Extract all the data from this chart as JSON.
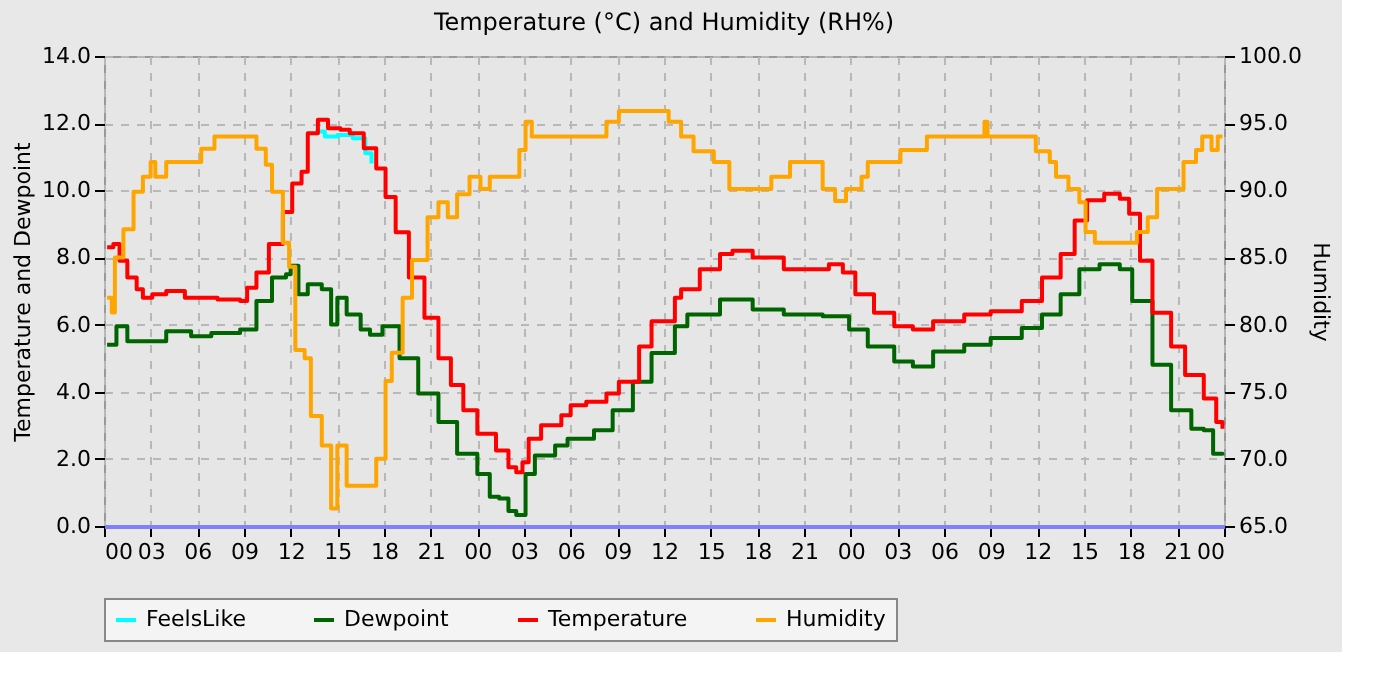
{
  "chart_data": {
    "type": "step",
    "title": "Temperature (°C) and Humidity (RH%)",
    "ylabel": "Temperature and Dewpoint",
    "y2label": "Humidity",
    "xlim": [
      0,
      72
    ],
    "xticks": [
      {
        "value": 0,
        "label": "00"
      },
      {
        "value": 3,
        "label": "03"
      },
      {
        "value": 6,
        "label": "06"
      },
      {
        "value": 9,
        "label": "09"
      },
      {
        "value": 12,
        "label": "12"
      },
      {
        "value": 15,
        "label": "15"
      },
      {
        "value": 18,
        "label": "18"
      },
      {
        "value": 21,
        "label": "21"
      },
      {
        "value": 24,
        "label": "00"
      },
      {
        "value": 27,
        "label": "03"
      },
      {
        "value": 30,
        "label": "06"
      },
      {
        "value": 33,
        "label": "09"
      },
      {
        "value": 36,
        "label": "12"
      },
      {
        "value": 39,
        "label": "15"
      },
      {
        "value": 42,
        "label": "18"
      },
      {
        "value": 45,
        "label": "21"
      },
      {
        "value": 48,
        "label": "00"
      },
      {
        "value": 51,
        "label": "03"
      },
      {
        "value": 54,
        "label": "06"
      },
      {
        "value": 57,
        "label": "09"
      },
      {
        "value": 60,
        "label": "12"
      },
      {
        "value": 63,
        "label": "15"
      },
      {
        "value": 66,
        "label": "18"
      },
      {
        "value": 69,
        "label": "21"
      },
      {
        "value": 72,
        "label": "00"
      }
    ],
    "ylim": [
      0,
      14
    ],
    "yticks": [
      {
        "value": 0,
        "label": "0.0"
      },
      {
        "value": 2,
        "label": "2.0"
      },
      {
        "value": 4,
        "label": "4.0"
      },
      {
        "value": 6,
        "label": "6.0"
      },
      {
        "value": 8,
        "label": "8.0"
      },
      {
        "value": 10,
        "label": "10.0"
      },
      {
        "value": 12,
        "label": "12.0"
      },
      {
        "value": 14,
        "label": "14.0"
      }
    ],
    "y2lim": [
      65,
      100
    ],
    "y2ticks": [
      {
        "value": 65,
        "label": "65.0"
      },
      {
        "value": 70,
        "label": "70.0"
      },
      {
        "value": 75,
        "label": "75.0"
      },
      {
        "value": 80,
        "label": "80.0"
      },
      {
        "value": 85,
        "label": "85.0"
      },
      {
        "value": 90,
        "label": "90.0"
      },
      {
        "value": 95,
        "label": "95.0"
      },
      {
        "value": 100,
        "label": "100.0"
      }
    ],
    "grid": true,
    "legend": "bottom",
    "line_style": "solid",
    "series": [
      {
        "name": "FeelsLike",
        "color": "#00ffff",
        "x": [
          13.6,
          14.2,
          15,
          16,
          16.8,
          17.2
        ],
        "values": [
          11.75,
          11.6,
          11.65,
          11.55,
          11.1,
          10.8
        ]
      },
      {
        "name": "Dewpoint",
        "color": "#006400",
        "x": [
          0.2,
          0.8,
          1.5,
          2.7,
          4,
          5.6,
          6.9,
          8.75,
          9.8,
          10.8,
          11.7,
          12,
          12.5,
          13.1,
          14,
          14.6,
          15,
          15.6,
          16.5,
          17.1,
          17.9,
          19,
          20.2,
          21.5,
          22.7,
          24,
          24.8,
          25.4,
          26,
          26.5,
          27.1,
          27.7,
          29,
          29.8,
          31.5,
          32.7,
          34,
          35.2,
          36.7,
          37.5,
          39.6,
          41.7,
          43.7,
          46.2,
          47.9,
          49.1,
          50.8,
          52,
          53.3,
          55.3,
          57,
          59,
          60.3,
          61.5,
          62.7,
          64,
          65.3,
          66.1,
          67.4,
          68.6,
          69.9,
          70.7,
          71.3,
          71.9
        ],
        "values": [
          5.4,
          5.95,
          5.5,
          5.5,
          5.8,
          5.65,
          5.75,
          5.85,
          6.7,
          7.4,
          7.5,
          7.75,
          6.9,
          7.2,
          7.05,
          6.0,
          6.8,
          6.3,
          5.85,
          5.7,
          5.95,
          5.0,
          3.95,
          3.1,
          2.15,
          1.55,
          0.87,
          0.82,
          0.45,
          0.33,
          1.55,
          2.1,
          2.4,
          2.6,
          2.85,
          3.45,
          4.3,
          5.15,
          5.95,
          6.3,
          6.75,
          6.45,
          6.3,
          6.25,
          5.85,
          5.35,
          4.9,
          4.75,
          5.2,
          5.4,
          5.6,
          5.9,
          6.3,
          6.9,
          7.65,
          7.8,
          7.65,
          6.7,
          4.8,
          3.45,
          2.9,
          2.85,
          2.15,
          2.1
        ]
      },
      {
        "name": "Temperature",
        "color": "#ff0000",
        "x": [
          0.2,
          0.6,
          1,
          1.5,
          2.1,
          2.5,
          3.1,
          4,
          5.2,
          7.3,
          8.75,
          9.2,
          9.8,
          10.6,
          11.5,
          12.1,
          12.7,
          13.1,
          13.75,
          14.4,
          15.2,
          15.8,
          16.7,
          17.5,
          18.1,
          18.75,
          19.6,
          20.6,
          21.5,
          22.3,
          23.1,
          24,
          25.2,
          26,
          26.5,
          26.9,
          27.3,
          28.1,
          29.4,
          30,
          31,
          32.3,
          33.1,
          34.4,
          35.2,
          36.7,
          37.1,
          38.3,
          39.6,
          40.4,
          41.7,
          43.7,
          45.8,
          46.6,
          47.5,
          48.3,
          49.5,
          50.8,
          52,
          53.3,
          55.3,
          57,
          59,
          60.3,
          61.5,
          62.4,
          63.2,
          64.3,
          65.3,
          65.9,
          66.6,
          67.4,
          68.6,
          69.5,
          70.7,
          71.5,
          71.9
        ],
        "values": [
          8.3,
          8.4,
          7.9,
          7.4,
          7.05,
          6.8,
          6.9,
          7.0,
          6.8,
          6.75,
          6.7,
          7.1,
          7.55,
          8.4,
          9.35,
          10.2,
          10.55,
          11.7,
          12.1,
          11.85,
          11.8,
          11.7,
          11.25,
          10.65,
          9.8,
          8.75,
          7.4,
          6.2,
          5.0,
          4.2,
          3.45,
          2.75,
          2.25,
          1.75,
          1.6,
          1.9,
          2.6,
          3.0,
          3.3,
          3.6,
          3.7,
          3.95,
          4.3,
          5.35,
          6.1,
          6.8,
          7.05,
          7.65,
          8.1,
          8.2,
          8.0,
          7.65,
          7.65,
          7.8,
          7.55,
          6.9,
          6.35,
          5.95,
          5.85,
          6.1,
          6.3,
          6.4,
          6.7,
          7.4,
          8.1,
          9.1,
          9.7,
          9.9,
          9.75,
          9.3,
          7.9,
          6.35,
          5.35,
          4.5,
          3.8,
          3.1,
          2.9
        ]
      },
      {
        "name": "Humidity",
        "color": "#ffa500",
        "axis": "y2",
        "x": [
          0.2,
          0.5,
          0.7,
          1.25,
          1.9,
          2.5,
          3,
          3.3,
          4,
          6,
          6.25,
          7.1,
          9.6,
          9.8,
          10.4,
          10.8,
          11.5,
          11.9,
          12.3,
          12.9,
          13.3,
          14,
          14.6,
          15,
          15.6,
          16.7,
          17.5,
          18.1,
          18.5,
          19.2,
          19.8,
          20.8,
          21.5,
          22.1,
          22.7,
          23.5,
          24.2,
          24.8,
          26,
          26.7,
          27.1,
          27.5,
          32.1,
          32.3,
          33.1,
          36,
          36.3,
          37.1,
          37.9,
          39.2,
          40.2,
          42.1,
          42.9,
          44.1,
          45.8,
          46.2,
          47,
          47.7,
          48.7,
          49.1,
          51.2,
          52.9,
          56.4,
          56.6,
          56.8,
          59.5,
          59.9,
          60.8,
          61.2,
          62,
          62.7,
          63.1,
          63.7,
          65.8,
          66.4,
          67.1,
          67.7,
          68.5,
          69.4,
          70.2,
          70.6,
          71.2,
          71.6,
          71.9
        ],
        "values": [
          82.0,
          80.9,
          85.0,
          87.1,
          89.9,
          91.0,
          92.1,
          91.0,
          92.1,
          92.1,
          93.1,
          94.0,
          94.0,
          93.1,
          91.9,
          89.9,
          86.1,
          84.3,
          78.1,
          77.5,
          73.2,
          71.0,
          66.3,
          71.0,
          68.0,
          68.0,
          70.0,
          75.8,
          77.9,
          82.0,
          84.8,
          88.0,
          89.1,
          88.0,
          89.7,
          91.0,
          90.1,
          91.0,
          91.0,
          93.0,
          95.1,
          94.0,
          94.0,
          95.1,
          95.9,
          95.9,
          95.1,
          94.0,
          92.9,
          92.1,
          90.1,
          90.1,
          91.0,
          92.1,
          92.1,
          90.1,
          89.2,
          90.1,
          91.0,
          92.1,
          93.0,
          94.0,
          94.0,
          95.1,
          94.0,
          94.0,
          92.9,
          92.1,
          91.0,
          90.1,
          89.1,
          86.9,
          86.1,
          86.1,
          86.9,
          88.0,
          90.1,
          90.1,
          92.1,
          93.0,
          94.0,
          93.0,
          94.0,
          94.0
        ]
      }
    ]
  }
}
